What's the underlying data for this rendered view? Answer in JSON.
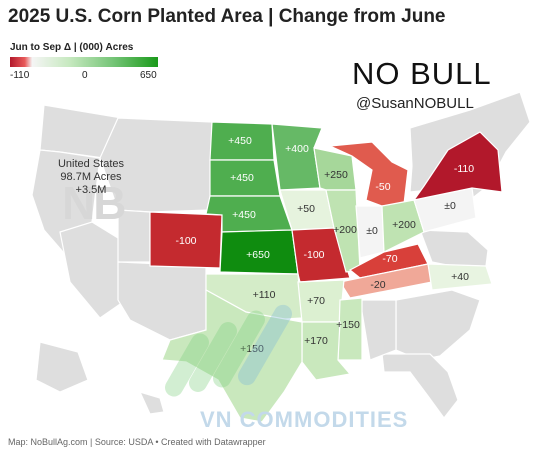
{
  "title": "2025 U.S. Corn Planted Area | Change from June",
  "legend": {
    "title": "Jun to Sep Δ | (000) Acres",
    "min": "-110",
    "mid": "0",
    "max": "650"
  },
  "brand": {
    "name": "NO BULL",
    "handle": "@SusanNOBULL"
  },
  "us_total": {
    "line1": "United States",
    "line2": "98.7M Acres",
    "line3": "+3.5M"
  },
  "states": {
    "nd": "+450",
    "mn": "+400",
    "sd": "+450",
    "wi": "+250",
    "mi": "-50",
    "ny": "-110",
    "ne": "+450",
    "ia": "+50",
    "il": "+200",
    "in": "±0",
    "oh": "+200",
    "pa": "±0",
    "co": "-100",
    "ks": "+650",
    "mo": "-100",
    "ky": "-70",
    "tn": "-20",
    "nc": "+40",
    "ok": "+110",
    "ar": "+70",
    "ms": "+150",
    "tx": "+150",
    "la": "+170"
  },
  "colors": {
    "neutral": "#dedede",
    "border": "#ffffff",
    "g650": "#0f8c0f",
    "g450": "#4fae4f",
    "g400": "#66b966",
    "g250": "#a6d79a",
    "g200": "#bfe3b2",
    "g150": "#c9e8bd",
    "g110": "#d4ecc8",
    "g70": "#dcf0d1",
    "g50": "#e6f3de",
    "g40": "#e8f4e1",
    "zero": "#f4f4f4",
    "r110": "#b2182b",
    "r100": "#c42a2f",
    "r70": "#d8403a",
    "r50": "#e05b4e",
    "r20": "#f0a898"
  },
  "watermark": "VN COMMODITIES",
  "credits": "Map: NoBullAg.com | Source: USDA • Created with Datawrapper"
}
